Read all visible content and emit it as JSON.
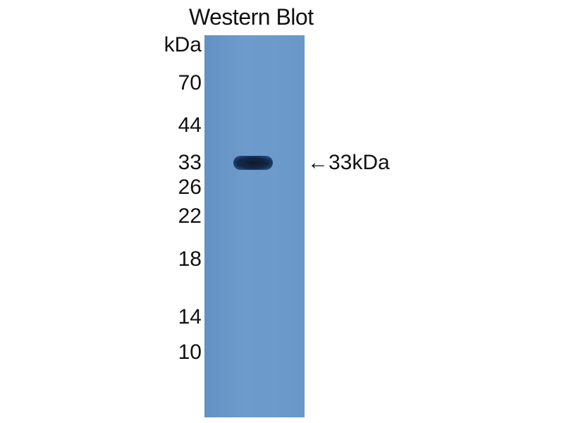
{
  "title": "Western Blot",
  "unit_label": "kDa",
  "markers": [
    "70",
    "44",
    "33",
    "26",
    "22",
    "18",
    "14",
    "10"
  ],
  "band_annotation": "←33kDa",
  "colors": {
    "membrane": "#6a98c9",
    "band": "#13284a"
  }
}
